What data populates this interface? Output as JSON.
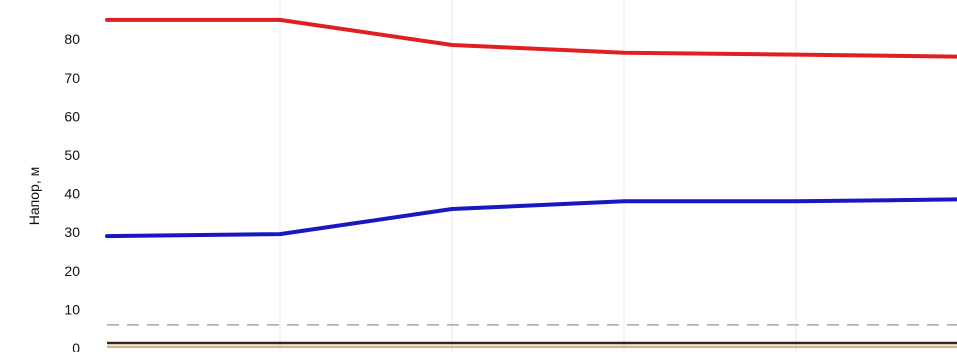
{
  "chart_data": {
    "type": "line",
    "ylabel": "Напор, м",
    "ylim": [
      0,
      88
    ],
    "x": [
      0,
      1,
      2,
      3,
      4,
      5
    ],
    "yticks": [
      "0",
      "10",
      "20",
      "30",
      "40",
      "50",
      "60",
      "70",
      "80"
    ],
    "grid": true,
    "series": [
      {
        "values": [
          85,
          85,
          78.5,
          76.5,
          76,
          75.5
        ],
        "color": "#e02020"
      },
      {
        "values": [
          29,
          29.5,
          36,
          38,
          38,
          38.5
        ],
        "color": "#1818c0"
      }
    ],
    "reference_lines": [
      {
        "value": 6,
        "style": "dashed",
        "color": "#9aa8b8"
      },
      {
        "value": 0.3,
        "style": "solid",
        "color": "#d2b48c"
      },
      {
        "value": 1.3,
        "style": "solid",
        "color": "#3a2418"
      }
    ]
  }
}
